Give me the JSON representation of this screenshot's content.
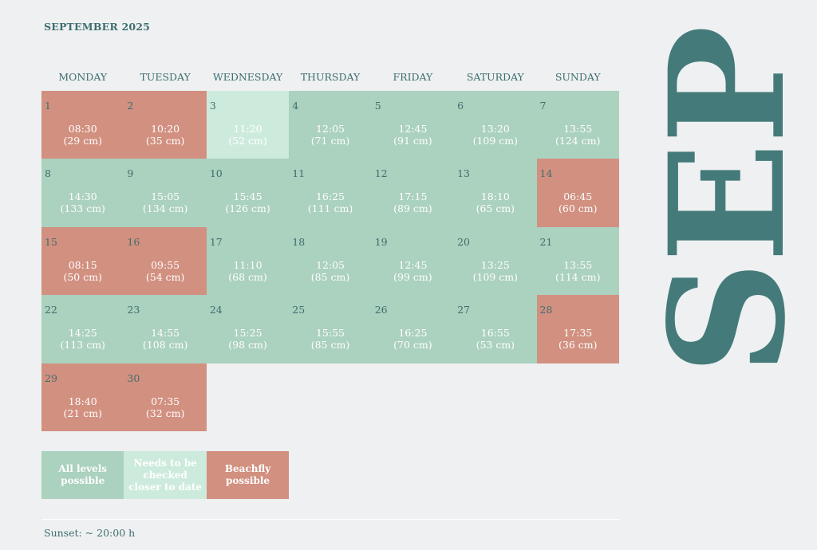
{
  "header": {
    "title": "SEPTEMBER 2025"
  },
  "weekdays": [
    "MONDAY",
    "TUESDAY",
    "WEDNESDAY",
    "THURSDAY",
    "FRIDAY",
    "SATURDAY",
    "SUNDAY"
  ],
  "days": [
    {
      "day": "1",
      "time": "08:30",
      "height": "(29 cm)",
      "status": "red"
    },
    {
      "day": "2",
      "time": "10:20",
      "height": "(35 cm)",
      "status": "red"
    },
    {
      "day": "3",
      "time": "11:20",
      "height": "(52 cm)",
      "status": "pale"
    },
    {
      "day": "4",
      "time": "12:05",
      "height": "(71 cm)",
      "status": "green"
    },
    {
      "day": "5",
      "time": "12:45",
      "height": "(91 cm)",
      "status": "green"
    },
    {
      "day": "6",
      "time": "13:20",
      "height": "(109 cm)",
      "status": "green"
    },
    {
      "day": "7",
      "time": "13:55",
      "height": "(124 cm)",
      "status": "green"
    },
    {
      "day": "8",
      "time": "14:30",
      "height": "(133 cm)",
      "status": "green"
    },
    {
      "day": "9",
      "time": "15:05",
      "height": "(134 cm)",
      "status": "green"
    },
    {
      "day": "10",
      "time": "15:45",
      "height": "(126 cm)",
      "status": "green"
    },
    {
      "day": "11",
      "time": "16:25",
      "height": "(111 cm)",
      "status": "green"
    },
    {
      "day": "12",
      "time": "17:15",
      "height": "(89 cm)",
      "status": "green"
    },
    {
      "day": "13",
      "time": "18:10",
      "height": "(65 cm)",
      "status": "green"
    },
    {
      "day": "14",
      "time": "06:45",
      "height": "(60 cm)",
      "status": "red"
    },
    {
      "day": "15",
      "time": "08:15",
      "height": "(50 cm)",
      "status": "red"
    },
    {
      "day": "16",
      "time": "09:55",
      "height": "(54 cm)",
      "status": "red"
    },
    {
      "day": "17",
      "time": "11:10",
      "height": "(68 cm)",
      "status": "green"
    },
    {
      "day": "18",
      "time": "12:05",
      "height": "(85 cm)",
      "status": "green"
    },
    {
      "day": "19",
      "time": "12:45",
      "height": "(99 cm)",
      "status": "green"
    },
    {
      "day": "20",
      "time": "13:25",
      "height": "(109 cm)",
      "status": "green"
    },
    {
      "day": "21",
      "time": "13:55",
      "height": "(114 cm)",
      "status": "green"
    },
    {
      "day": "22",
      "time": "14:25",
      "height": "(113 cm)",
      "status": "green"
    },
    {
      "day": "23",
      "time": "14:55",
      "height": "(108 cm)",
      "status": "green"
    },
    {
      "day": "24",
      "time": "15:25",
      "height": "(98 cm)",
      "status": "green"
    },
    {
      "day": "25",
      "time": "15:55",
      "height": "(85 cm)",
      "status": "green"
    },
    {
      "day": "26",
      "time": "16:25",
      "height": "(70 cm)",
      "status": "green"
    },
    {
      "day": "27",
      "time": "16:55",
      "height": "(53 cm)",
      "status": "green"
    },
    {
      "day": "28",
      "time": "17:35",
      "height": "(36 cm)",
      "status": "red"
    },
    {
      "day": "29",
      "time": "18:40",
      "height": "(21 cm)",
      "status": "red"
    },
    {
      "day": "30",
      "time": "07:35",
      "height": "(32 cm)",
      "status": "red"
    }
  ],
  "legend": [
    {
      "label": "All levels possible",
      "status": "green"
    },
    {
      "label": "Needs to be checked closer to date",
      "status": "pale"
    },
    {
      "label": "Beachfly possible",
      "status": "red"
    }
  ],
  "colors": {
    "green": "#abd1bf",
    "pale": "#cdebdd",
    "red": "#d29080",
    "accent": "#457a7a",
    "background": "#eef0f2"
  },
  "footer": {
    "sunset": "Sunset: ~ 20:00 h"
  },
  "side_title": "SEP"
}
